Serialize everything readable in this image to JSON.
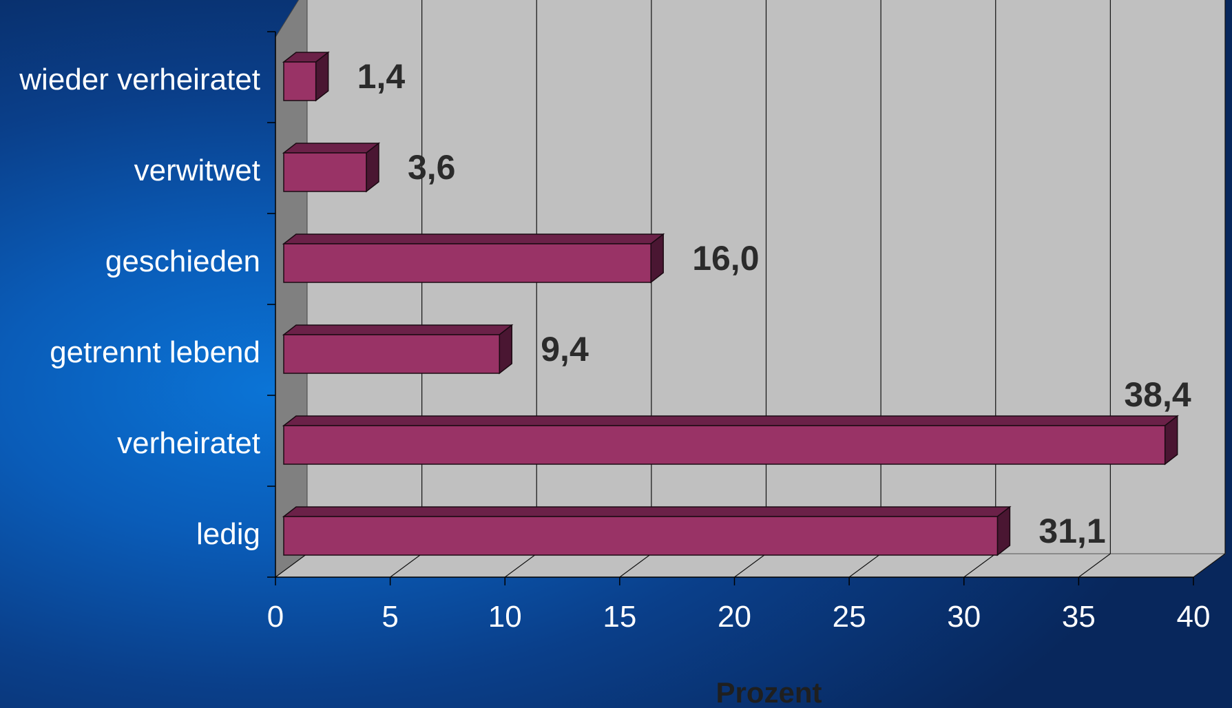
{
  "chart_data": {
    "type": "bar",
    "orientation": "horizontal",
    "style": "3d",
    "categories": [
      "wieder verheiratet",
      "verwitwet",
      "geschieden",
      "getrennt lebend",
      "verheiratet",
      "ledig"
    ],
    "values": [
      1.4,
      3.6,
      16.0,
      9.4,
      38.4,
      31.1
    ],
    "value_labels": [
      "1,4",
      "3,6",
      "16,0",
      "9,4",
      "38,4",
      "31,1"
    ],
    "title": "",
    "xlabel": "Prozent",
    "ylabel": "",
    "xlim": [
      0,
      40
    ],
    "x_ticks": [
      0,
      5,
      10,
      15,
      20,
      25,
      30,
      35,
      40
    ],
    "grid": "vertical",
    "legend": "none",
    "colors": {
      "bar_front": "#993366",
      "bar_top": "#6b2148",
      "bar_side": "#4a1632",
      "bar_edge": "#1a0a12",
      "back_wall": "#c0c0c0",
      "side_wall": "#808080",
      "floor": "#c0c0c0",
      "gridline": "#111111",
      "value_label": "#2b2b2b",
      "axis_label": "#ffffff",
      "axis_title": "#1f1f1f"
    }
  }
}
